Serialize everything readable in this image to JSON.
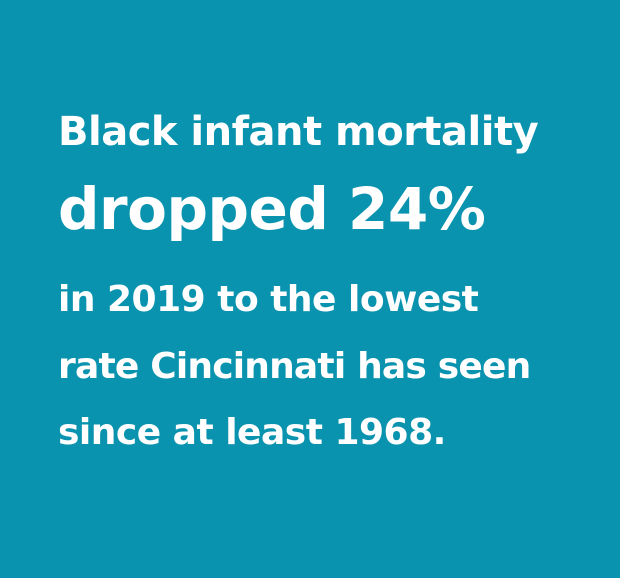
{
  "background_color": "#0a93ae",
  "text_color": "#ffffff",
  "statement": {
    "line1": "Black infant mortality",
    "line2": "dropped 24%",
    "line3": "in 2019 to the lowest",
    "line4": "rate Cincinnati has seen",
    "line5": "since at least 1968."
  }
}
